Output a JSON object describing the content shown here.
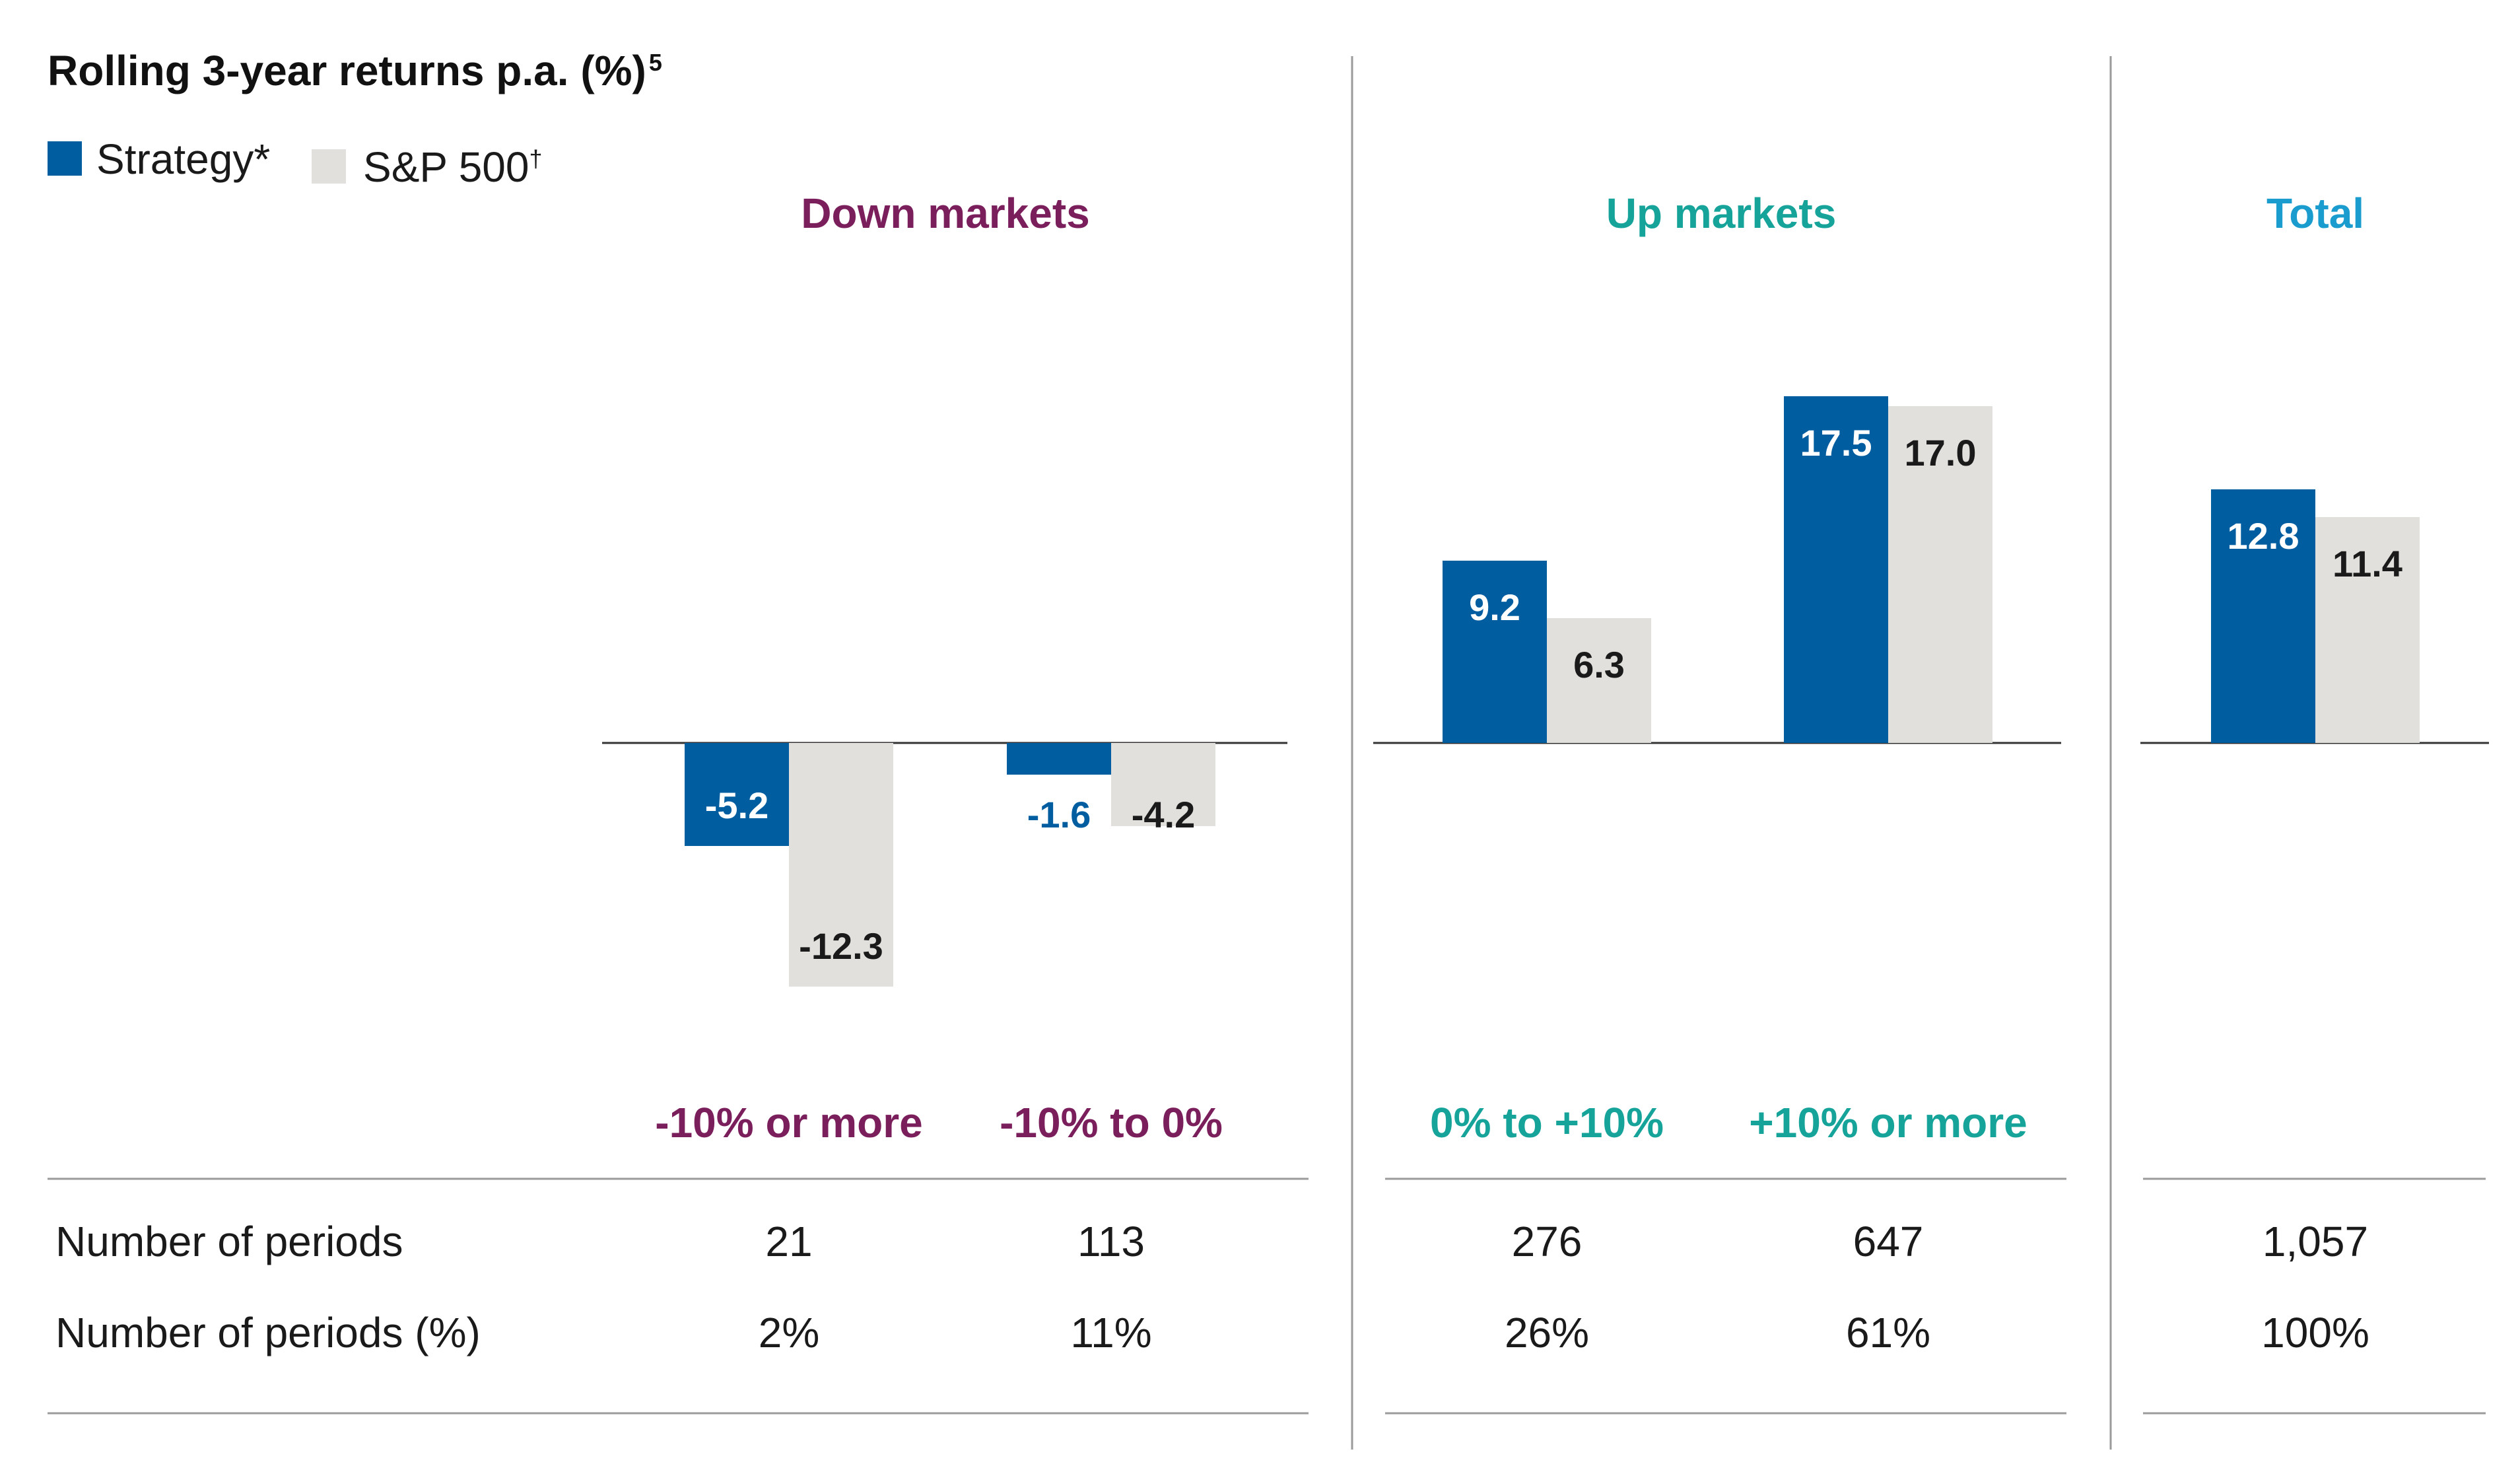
{
  "colors": {
    "strategy": "#005DA0",
    "sp500": "#E1E0DC",
    "down_markets": "#7A1F5C",
    "up_markets": "#16A39A",
    "total": "#1A9CCE",
    "divider": "#9B9B9B",
    "text": "#1A1A1A"
  },
  "chart_data": {
    "type": "bar",
    "title": "Rolling 3-year returns p.a. (%)",
    "title_superscript": "5",
    "legend_placement": "top-left",
    "series": [
      {
        "name": "Strategy",
        "marker": "*",
        "values": [
          -5.2,
          -1.6,
          9.2,
          17.5,
          12.8
        ]
      },
      {
        "name": "S&P 500",
        "marker": "†",
        "values": [
          -12.3,
          -4.2,
          6.3,
          17.0,
          11.4
        ]
      }
    ],
    "categories": [
      "-10% or more",
      "-10% to 0%",
      "0% to +10%",
      "+10% or more",
      ""
    ],
    "groups": [
      {
        "name": "Down markets",
        "categories": [
          0,
          1
        ]
      },
      {
        "name": "Up markets",
        "categories": [
          2,
          3
        ]
      },
      {
        "name": "Total",
        "categories": [
          4
        ]
      }
    ],
    "grid": false,
    "table": {
      "rows": [
        {
          "label": "Number of periods",
          "values": [
            "21",
            "113",
            "276",
            "647",
            "1,057"
          ]
        },
        {
          "label": "Number of periods (%)",
          "values": [
            "2%",
            "11%",
            "26%",
            "61%",
            "100%"
          ]
        }
      ]
    }
  }
}
